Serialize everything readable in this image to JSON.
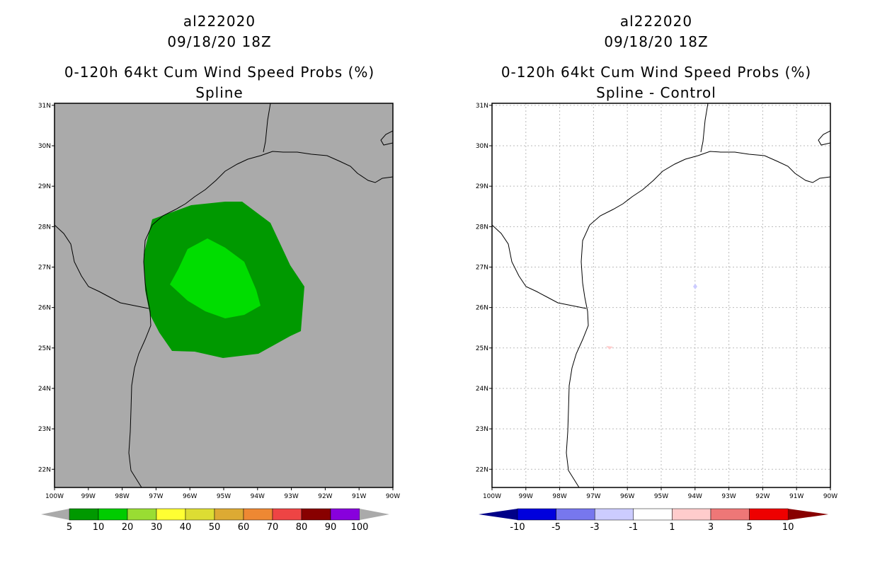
{
  "left_panel": {
    "storm_id": "al222020",
    "date": "09/18/20 18Z",
    "product": "0-120h 64kt Cum Wind Speed Probs (%)",
    "subtitle": "Spline",
    "colorbar": {
      "labels": [
        "5",
        "10",
        "20",
        "30",
        "40",
        "50",
        "60",
        "70",
        "80",
        "90",
        "100"
      ],
      "colors": [
        "#009900",
        "#00cc00",
        "#99dd33",
        "#ffff33",
        "#dddd33",
        "#ddaa33",
        "#ee8833",
        "#ee4444",
        "#880000",
        "#8800dd"
      ],
      "end_color": "#aaaaaa"
    },
    "fill_colors": {
      "background": "#aaaaaa",
      "prob_5_10": "#009900",
      "prob_10_20": "#00dd00"
    }
  },
  "right_panel": {
    "storm_id": "al222020",
    "date": "09/18/20 18Z",
    "product": "0-120h 64kt Cum Wind Speed Probs (%)",
    "subtitle": "Spline - Control",
    "colorbar": {
      "labels": [
        "-10",
        "-5",
        "-3",
        "-1",
        "1",
        "3",
        "5",
        "10"
      ],
      "colors": [
        "#0000dd",
        "#7777ee",
        "#ccccff",
        "#ffffff",
        "#ffcccc",
        "#ee7777",
        "#ee0000"
      ],
      "low_end_color": "#000088",
      "high_end_color": "#880000"
    }
  },
  "map": {
    "lat_labels": [
      "31N",
      "30N",
      "29N",
      "28N",
      "27N",
      "26N",
      "25N",
      "24N",
      "23N",
      "22N"
    ],
    "lon_labels": [
      "100W",
      "99W",
      "98W",
      "97W",
      "96W",
      "95W",
      "94W",
      "93W",
      "92W",
      "91W",
      "90W"
    ],
    "lat_values": [
      31,
      30,
      29,
      28,
      27,
      26,
      25,
      24,
      23,
      22
    ],
    "lon_values": [
      100,
      99,
      98,
      97,
      96,
      95,
      94,
      93,
      92,
      91,
      90
    ],
    "lat_range": [
      21.55,
      31.05
    ],
    "lon_range": [
      100,
      90
    ]
  }
}
